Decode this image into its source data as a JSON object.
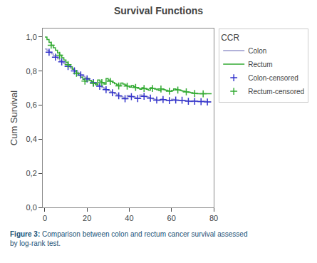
{
  "chart_data": {
    "type": "step",
    "title": "Survival Functions",
    "ylabel": "Cum Survival",
    "xlim": [
      -1,
      80
    ],
    "xticks": [
      0,
      20,
      40,
      60,
      80
    ],
    "ylim": [
      0.0,
      1.05
    ],
    "yticks": [
      {
        "value": 0.0,
        "label": "0,0"
      },
      {
        "value": 0.2,
        "label": "0,2"
      },
      {
        "value": 0.4,
        "label": "0,4"
      },
      {
        "value": 0.6,
        "label": "0,6"
      },
      {
        "value": 0.8,
        "label": "0,8"
      },
      {
        "value": 1.0,
        "label": "1,0"
      }
    ],
    "grid": false,
    "legend": "right",
    "legend_title": "CCR",
    "annotations": [
      "Figure 3:",
      " Comparison between colon and rectum cancer survival assessed\nby log-rank test."
    ],
    "series": [
      {
        "name": "Colon",
        "color": "#9999cc",
        "x": [
          0,
          1,
          2,
          3,
          4,
          5,
          6,
          7,
          8,
          9,
          10,
          11,
          12,
          13,
          14,
          15,
          16,
          17,
          18,
          19,
          20,
          21,
          22,
          23,
          24,
          25,
          26,
          27,
          28,
          29,
          30,
          31,
          32,
          33,
          34,
          35,
          36,
          37,
          38,
          39,
          40,
          41,
          42,
          43,
          44,
          45,
          46,
          47,
          48,
          49,
          50,
          51,
          52,
          53,
          54,
          55,
          56,
          57,
          58,
          59,
          60,
          61,
          62,
          63,
          64,
          65,
          66,
          67,
          68,
          69,
          70,
          71,
          72,
          73,
          74,
          75,
          76,
          77,
          78,
          79
        ],
        "values": [
          0.93,
          0.921,
          0.911,
          0.901,
          0.891,
          0.882,
          0.872,
          0.863,
          0.854,
          0.845,
          0.836,
          0.827,
          0.818,
          0.81,
          0.801,
          0.793,
          0.785,
          0.777,
          0.769,
          0.761,
          0.754,
          0.746,
          0.739,
          0.732,
          0.725,
          0.718,
          0.711,
          0.704,
          0.698,
          0.691,
          0.685,
          0.679,
          0.673,
          0.667,
          0.661,
          0.655,
          0.649,
          0.643,
          0.638,
          0.658,
          0.654,
          0.65,
          0.647,
          0.643,
          0.639,
          0.66,
          0.656,
          0.652,
          0.648,
          0.645,
          0.641,
          0.637,
          0.634,
          0.63,
          0.627,
          0.636,
          0.633,
          0.63,
          0.629,
          0.627,
          0.635,
          0.633,
          0.63,
          0.628,
          0.626,
          0.629,
          0.627,
          0.625,
          0.623,
          0.621,
          0.625,
          0.623,
          0.621,
          0.621,
          0.621,
          0.623,
          0.621,
          0.619,
          0.619,
          0.619
        ]
      },
      {
        "name": "Rectum",
        "color": "#33aa33",
        "x": [
          0,
          1,
          2,
          3,
          4,
          5,
          6,
          7,
          8,
          9,
          10,
          11,
          12,
          13,
          14,
          15,
          16,
          17,
          18,
          19,
          20,
          21,
          22,
          23,
          24,
          25,
          26,
          27,
          28,
          29,
          30,
          31,
          32,
          33,
          34,
          35,
          36,
          37,
          38,
          39,
          40,
          41,
          42,
          43,
          44,
          45,
          46,
          47,
          48,
          49,
          50,
          51,
          52,
          53,
          54,
          55,
          56,
          57,
          58,
          59,
          60,
          61,
          62,
          63,
          64,
          65,
          66,
          67,
          68,
          69,
          70,
          71,
          72,
          73,
          74,
          75,
          76,
          77,
          78,
          79
        ],
        "values": [
          1.0,
          0.985,
          0.968,
          0.952,
          0.937,
          0.922,
          0.907,
          0.893,
          0.879,
          0.865,
          0.851,
          0.838,
          0.825,
          0.812,
          0.8,
          0.787,
          0.775,
          0.764,
          0.752,
          0.741,
          0.757,
          0.746,
          0.737,
          0.728,
          0.719,
          0.748,
          0.74,
          0.732,
          0.724,
          0.756,
          0.748,
          0.74,
          0.733,
          0.726,
          0.719,
          0.713,
          0.73,
          0.724,
          0.718,
          0.712,
          0.706,
          0.715,
          0.709,
          0.704,
          0.699,
          0.693,
          0.703,
          0.698,
          0.693,
          0.688,
          0.703,
          0.698,
          0.694,
          0.69,
          0.686,
          0.695,
          0.691,
          0.688,
          0.685,
          0.682,
          0.686,
          0.695,
          0.692,
          0.689,
          0.686,
          0.683,
          0.681,
          0.678,
          0.676,
          0.673,
          0.671,
          0.669,
          0.667,
          0.667,
          0.667,
          0.667,
          0.667,
          0.667,
          0.667,
          0.667
        ]
      },
      {
        "name": "Colon-censored",
        "color": "#3333cc",
        "type": "scatter",
        "marker": "cross",
        "x": [
          2,
          5,
          8,
          11,
          14,
          17,
          20,
          23,
          26,
          29,
          32,
          35,
          38,
          41,
          44,
          47,
          50,
          53,
          56,
          59,
          62,
          65,
          68,
          71,
          74,
          77
        ],
        "values": [
          0.911,
          0.882,
          0.854,
          0.827,
          0.801,
          0.777,
          0.754,
          0.732,
          0.711,
          0.691,
          0.673,
          0.655,
          0.638,
          0.65,
          0.639,
          0.652,
          0.641,
          0.63,
          0.633,
          0.627,
          0.63,
          0.629,
          0.623,
          0.623,
          0.621,
          0.619
        ]
      },
      {
        "name": "Rectum-censored",
        "color": "#33aa33",
        "type": "scatter",
        "marker": "cross",
        "x": [
          3,
          7,
          11,
          15,
          19,
          23,
          27,
          31,
          35,
          39,
          43,
          47,
          51,
          55,
          59,
          63,
          67,
          71,
          75
        ],
        "values": [
          0.952,
          0.893,
          0.838,
          0.787,
          0.741,
          0.728,
          0.732,
          0.74,
          0.713,
          0.712,
          0.704,
          0.698,
          0.698,
          0.695,
          0.682,
          0.689,
          0.678,
          0.669,
          0.667
        ]
      }
    ]
  }
}
